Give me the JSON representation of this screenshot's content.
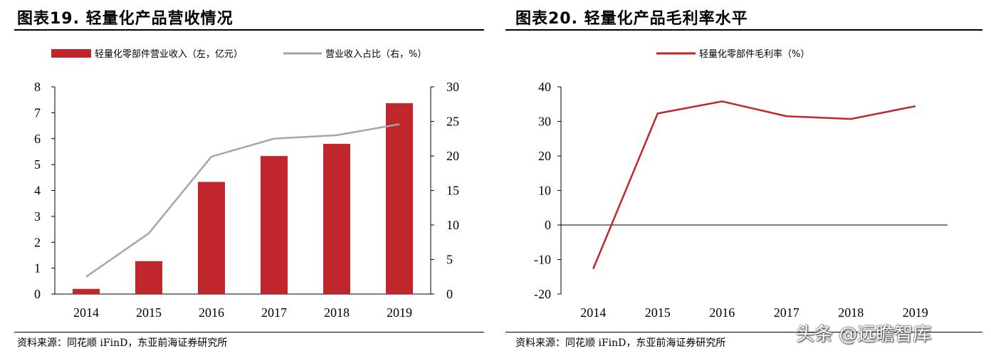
{
  "figures": [
    {
      "title": "图表19. 轻量化产品营收情况",
      "source": "资料来源：同花顺 iFinD，东亚前海证券研究所"
    },
    {
      "title": "图表20. 轻量化产品毛利率水平",
      "source": "资料来源：同花顺 iFinD，东亚前海证券研究所"
    }
  ],
  "watermark": "头条 @远瞻智库",
  "colors": {
    "bar": "#C0272D",
    "line_gray": "#A6A6A6",
    "line_red": "#C0272D"
  },
  "chart_data": [
    {
      "type": "bar",
      "categories": [
        "2014",
        "2015",
        "2016",
        "2017",
        "2018",
        "2019"
      ],
      "series": [
        {
          "name": "轻量化零部件营业收入（左，亿元）",
          "type": "bar",
          "axis": "left",
          "values": [
            0.2,
            1.27,
            4.33,
            5.33,
            5.8,
            7.37
          ]
        },
        {
          "name": "营业收入占比（右，%）",
          "type": "line",
          "axis": "right",
          "values": [
            2.5,
            8.8,
            19.9,
            22.5,
            23.0,
            24.6
          ]
        }
      ],
      "ylim_left": [
        0,
        8
      ],
      "yticks_left": [
        "0",
        "1",
        "2",
        "3",
        "4",
        "5",
        "6",
        "7",
        "8"
      ],
      "ylim_right": [
        0,
        30
      ],
      "yticks_right": [
        "0",
        "5",
        "10",
        "15",
        "20",
        "25",
        "30"
      ],
      "legend": "top",
      "grid": false
    },
    {
      "type": "line",
      "categories": [
        "2014",
        "2015",
        "2016",
        "2017",
        "2018",
        "2019"
      ],
      "series": [
        {
          "name": "轻量化零部件毛利率（%）",
          "values": [
            -12.7,
            32.3,
            35.8,
            31.5,
            30.7,
            34.4
          ]
        }
      ],
      "ylim": [
        -20,
        40
      ],
      "yticks": [
        "-20",
        "-10",
        "0",
        "10",
        "20",
        "30",
        "40"
      ],
      "legend": "top",
      "grid": false
    }
  ]
}
